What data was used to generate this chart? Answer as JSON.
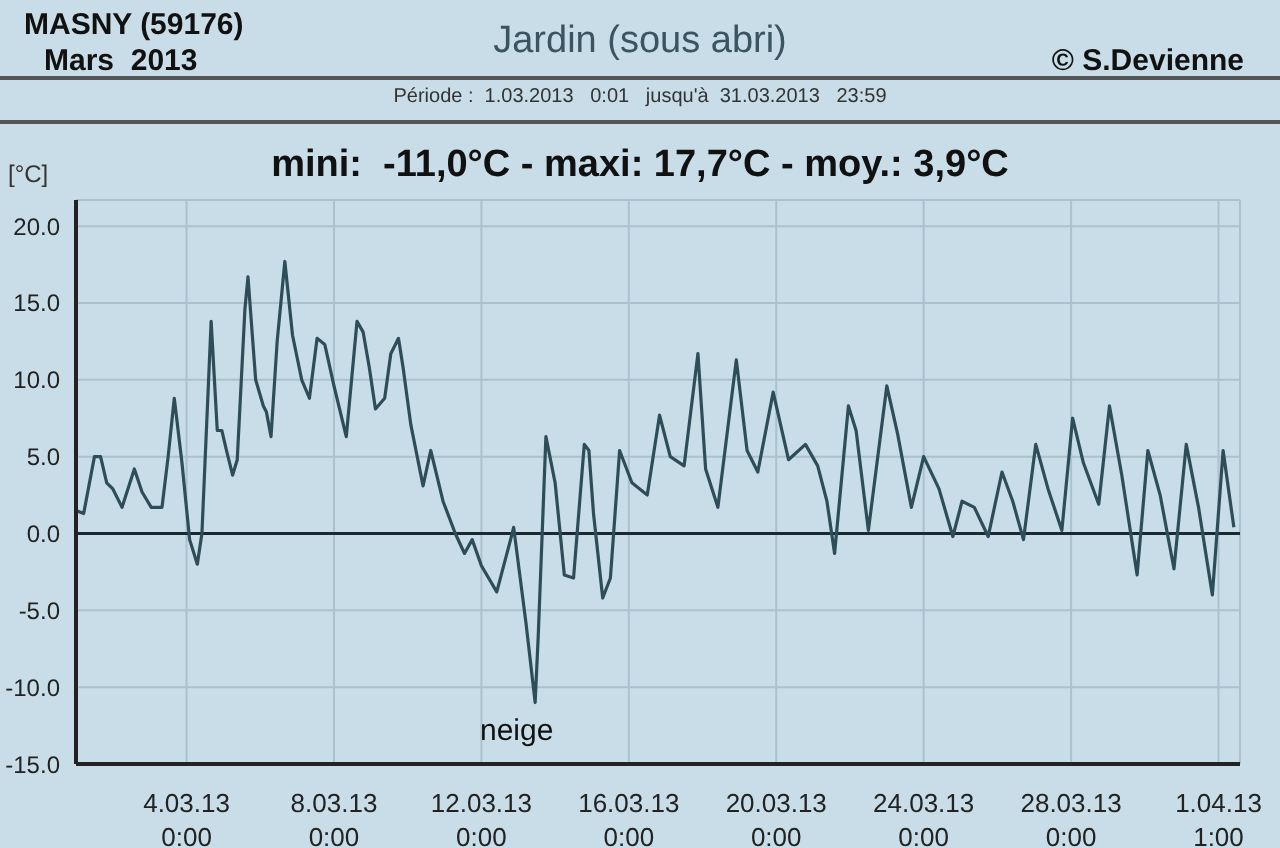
{
  "chart_data": {
    "type": "line",
    "title": "Jardin (sous abri)",
    "subtitle": "Période :  1.03.2013   0:01   jusqu'à  31.03.2013   23:59",
    "ylabel": "[°C]",
    "annotations": [
      "MASNY (59176)",
      "Mars  2013",
      "© S.Devienne",
      "mini:  -11,0°C - maxi: 17,7°C - moy.: 3,9°C",
      "neige"
    ],
    "x": [
      "2013-03-01T00:00",
      "2013-03-01T05:00",
      "2013-03-01T12:00",
      "2013-03-01T16:00",
      "2013-03-01T20:00",
      "2013-03-02T00:00",
      "2013-03-02T06:00",
      "2013-03-02T14:00",
      "2013-03-02T19:00",
      "2013-03-03T01:00",
      "2013-03-03T08:00",
      "2013-03-03T12:00",
      "2013-03-03T16:00",
      "2013-03-03T21:00",
      "2013-03-04T02:00",
      "2013-03-04T07:00",
      "2013-03-04T10:00",
      "2013-03-04T16:00",
      "2013-03-04T20:00",
      "2013-03-04T23:00",
      "2013-03-05T02:00",
      "2013-03-05T06:00",
      "2013-03-05T09:00",
      "2013-03-05T14:00",
      "2013-03-05T16:00",
      "2013-03-05T21:00",
      "2013-03-06T02:00",
      "2013-03-06T04:00",
      "2013-03-06T07:00",
      "2013-03-06T11:00",
      "2013-03-06T16:00",
      "2013-03-06T21:00",
      "2013-03-07T03:00",
      "2013-03-07T08:00",
      "2013-03-07T13:00",
      "2013-03-07T18:00",
      "2013-03-08T00:00",
      "2013-03-08T08:00",
      "2013-03-08T15:00",
      "2013-03-08T19:00",
      "2013-03-08T23:00",
      "2013-03-09T03:00",
      "2013-03-09T09:00",
      "2013-03-09T13:00",
      "2013-03-09T18:00",
      "2013-03-09T21:00",
      "2013-03-10T02:00",
      "2013-03-10T10:00",
      "2013-03-10T15:00",
      "2013-03-10T23:00",
      "2013-03-11T07:00",
      "2013-03-11T13:00",
      "2013-03-11T18:00",
      "2013-03-12T00:00",
      "2013-03-12T10:00",
      "2013-03-12T19:00",
      "2013-03-12T21:00",
      "2013-03-13T05:00",
      "2013-03-13T11:00",
      "2013-03-13T13:00",
      "2013-03-13T18:00",
      "2013-03-14T00:00",
      "2013-03-14T06:00",
      "2013-03-14T12:00",
      "2013-03-14T19:00",
      "2013-03-14T22:00",
      "2013-03-15T01:00",
      "2013-03-15T07:00",
      "2013-03-15T12:00",
      "2013-03-15T18:00",
      "2013-03-16T02:00",
      "2013-03-16T12:00",
      "2013-03-16T20:00",
      "2013-03-17T03:00",
      "2013-03-17T12:00",
      "2013-03-17T21:00",
      "2013-03-18T02:00",
      "2013-03-18T10:00",
      "2013-03-18T22:00",
      "2013-03-19T05:00",
      "2013-03-19T12:00",
      "2013-03-19T22:00",
      "2013-03-20T08:00",
      "2013-03-20T19:00",
      "2013-03-21T03:00",
      "2013-03-21T09:00",
      "2013-03-21T14:00",
      "2013-03-21T23:00",
      "2013-03-22T04:00",
      "2013-03-22T12:00",
      "2013-03-23T00:00",
      "2013-03-23T07:00",
      "2013-03-23T16:00",
      "2013-03-24T00:00",
      "2013-03-24T10:00",
      "2013-03-24T19:00",
      "2013-03-25T01:00",
      "2013-03-25T09:00",
      "2013-03-25T18:00",
      "2013-03-26T03:00",
      "2013-03-26T10:00",
      "2013-03-26T17:00",
      "2013-03-27T01:00",
      "2013-03-27T09:00",
      "2013-03-27T18:00",
      "2013-03-28T01:00",
      "2013-03-28T08:00",
      "2013-03-28T18:00",
      "2013-03-29T01:00",
      "2013-03-29T09:00",
      "2013-03-29T19:00",
      "2013-03-30T02:00",
      "2013-03-30T10:00",
      "2013-03-30T19:00",
      "2013-03-31T03:00",
      "2013-03-31T11:00",
      "2013-03-31T20:00",
      "2013-04-01T03:00",
      "2013-04-01T10:00"
    ],
    "series": [
      {
        "color": "#2f4d58",
        "values": [
          1.5,
          1.3,
          5.0,
          5.0,
          3.3,
          2.9,
          1.7,
          4.2,
          2.7,
          1.7,
          1.7,
          5.0,
          8.8,
          4.6,
          -0.4,
          -2.0,
          0.0,
          13.8,
          6.7,
          6.7,
          5.4,
          3.8,
          4.8,
          14.6,
          16.7,
          10.0,
          8.3,
          7.9,
          6.3,
          12.5,
          17.7,
          12.9,
          10.0,
          8.8,
          12.7,
          12.3,
          9.6,
          6.3,
          13.8,
          13.1,
          10.8,
          8.1,
          8.8,
          11.7,
          12.7,
          10.8,
          7.1,
          3.1,
          5.4,
          2.1,
          0.0,
          -1.3,
          -0.4,
          -2.1,
          -3.8,
          -0.4,
          0.4,
          -5.8,
          -11.0,
          -6.7,
          6.3,
          3.3,
          -2.7,
          -2.9,
          5.8,
          5.4,
          1.3,
          -4.2,
          -2.9,
          5.4,
          3.3,
          2.5,
          7.7,
          5.0,
          4.4,
          11.7,
          4.2,
          1.7,
          11.3,
          5.4,
          4.0,
          9.2,
          4.8,
          5.8,
          4.4,
          2.1,
          -1.3,
          8.3,
          6.7,
          0.2,
          9.6,
          6.5,
          1.7,
          5.0,
          2.9,
          -0.2,
          2.1,
          1.7,
          -0.2,
          4.0,
          2.1,
          -0.4,
          5.8,
          2.9,
          0.2,
          7.5,
          4.6,
          1.9,
          8.3,
          3.8,
          -2.7,
          5.4,
          2.5,
          -2.3,
          5.8,
          1.7,
          -4.0,
          5.4,
          0.4
        ]
      }
    ],
    "xlim": [
      "2013-03-01T00:00",
      "2013-04-01T14:00"
    ],
    "xticks": [
      {
        "value": "2013-03-04T00:00",
        "label": "4.03.13\n0:00"
      },
      {
        "value": "2013-03-08T00:00",
        "label": "8.03.13\n0:00"
      },
      {
        "value": "2013-03-12T00:00",
        "label": "12.03.13\n0:00"
      },
      {
        "value": "2013-03-16T00:00",
        "label": "16.03.13\n0:00"
      },
      {
        "value": "2013-03-20T00:00",
        "label": "20.03.13\n0:00"
      },
      {
        "value": "2013-03-24T00:00",
        "label": "24.03.13\n0:00"
      },
      {
        "value": "2013-03-28T00:00",
        "label": "28.03.13\n0:00"
      },
      {
        "value": "2013-04-01T00:00",
        "label": "1.04.13\n1:00"
      }
    ],
    "ylim": [
      -15,
      21.7
    ],
    "yticks": [
      {
        "value": -15,
        "label": "-15.0"
      },
      {
        "value": -10,
        "label": "-10.0"
      },
      {
        "value": -5,
        "label": "-5.0"
      },
      {
        "value": 0,
        "label": "0.0"
      },
      {
        "value": 5,
        "label": "5.0"
      },
      {
        "value": 10,
        "label": "10.0"
      },
      {
        "value": 15,
        "label": "15.0"
      },
      {
        "value": 20,
        "label": "20.0"
      }
    ],
    "ref_lines": [
      {
        "axis": "y",
        "value": 0,
        "color": "#1a2a30"
      }
    ],
    "grid": true
  }
}
